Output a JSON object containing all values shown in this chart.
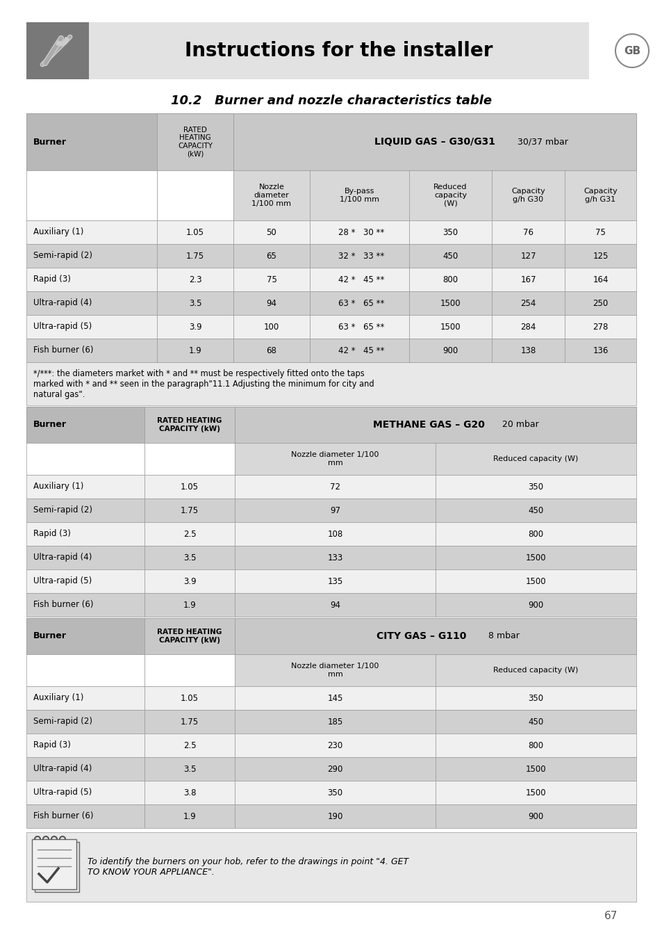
{
  "page_title": "Instructions for the installer",
  "section_title": "10.2   Burner and nozzle characteristics table",
  "gb_label": "GB",
  "bg_color": "#ffffff",
  "table1": {
    "rows": [
      [
        "Auxiliary (1)",
        "1.05",
        "50",
        "28 *",
        "30 **",
        "350",
        "76",
        "75"
      ],
      [
        "Semi-rapid (2)",
        "1.75",
        "65",
        "32 *",
        "33 **",
        "450",
        "127",
        "125"
      ],
      [
        "Rapid (3)",
        "2.3",
        "75",
        "42 *",
        "45 **",
        "800",
        "167",
        "164"
      ],
      [
        "Ultra-rapid (4)",
        "3.5",
        "94",
        "63 *",
        "65 **",
        "1500",
        "254",
        "250"
      ],
      [
        "Ultra-rapid (5)",
        "3.9",
        "100",
        "63 *",
        "65 **",
        "1500",
        "284",
        "278"
      ],
      [
        "Fish burner (6)",
        "1.9",
        "68",
        "42 *",
        "45 **",
        "900",
        "138",
        "136"
      ]
    ]
  },
  "footnote_line1": "*/***: the diameters market with * and ** must be respectively fitted onto the taps",
  "footnote_line2": "marked with * and ** seen in the paragraph\"11.1 Adjusting the minimum for city and",
  "footnote_line3": "natural gas\".",
  "table2": {
    "rows": [
      [
        "Auxiliary (1)",
        "1.05",
        "72",
        "350"
      ],
      [
        "Semi-rapid (2)",
        "1.75",
        "97",
        "450"
      ],
      [
        "Rapid (3)",
        "2.5",
        "108",
        "800"
      ],
      [
        "Ultra-rapid (4)",
        "3.5",
        "133",
        "1500"
      ],
      [
        "Ultra-rapid (5)",
        "3.9",
        "135",
        "1500"
      ],
      [
        "Fish burner (6)",
        "1.9",
        "94",
        "900"
      ]
    ]
  },
  "table3": {
    "rows": [
      [
        "Auxiliary (1)",
        "1.05",
        "145",
        "350"
      ],
      [
        "Semi-rapid (2)",
        "1.75",
        "185",
        "450"
      ],
      [
        "Rapid (3)",
        "2.5",
        "230",
        "800"
      ],
      [
        "Ultra-rapid (4)",
        "3.5",
        "290",
        "1500"
      ],
      [
        "Ultra-rapid (5)",
        "3.8",
        "350",
        "1500"
      ],
      [
        "Fish burner (6)",
        "1.9",
        "190",
        "900"
      ]
    ]
  },
  "bottom_note_line1": "To identify the burners on your hob, refer to the drawings in point \"4. GET",
  "bottom_note_line2": "TO KNOW YOUR APPLIANCE\".",
  "page_number": "67",
  "col_gray": "#c8c8c8",
  "row_gray": "#d0d0d0",
  "row_white": "#f0f0f0",
  "subhdr_gray": "#d8d8d8",
  "hdr_dark": "#b8b8b8",
  "icon_dark": "#787878",
  "title_bg": "#e2e2e2",
  "note_bg": "#e8e8e8",
  "border_color": "#999999"
}
